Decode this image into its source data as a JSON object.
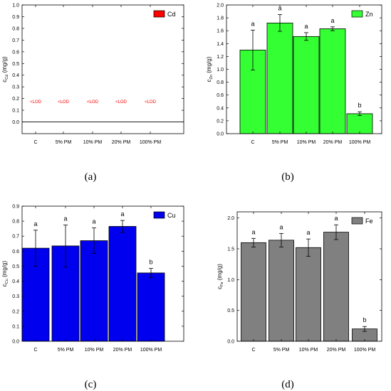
{
  "chart_data": [
    {
      "type": "bar",
      "panel": "(a)",
      "categories": [
        "C",
        "5% PM",
        "10% PM",
        "20% PM",
        "100% PM"
      ],
      "series": [
        {
          "name": "Cd",
          "values": [
            null,
            null,
            null,
            null,
            null
          ]
        }
      ],
      "errors": [
        null,
        null,
        null,
        null,
        null
      ],
      "value_labels": [
        "<LOD",
        "<LOD",
        "<LOD",
        "<LOD",
        "<LOD"
      ],
      "letters": [],
      "ylabel_main": "c",
      "ylabel_sub": "Cd",
      "ylabel_unit": " (mg/g)",
      "ylim": [
        -0.1,
        1.0
      ],
      "yticks": [
        0.0,
        0.1,
        0.2,
        0.3,
        0.4,
        0.5,
        0.6,
        0.7,
        0.8,
        0.9,
        1.0
      ],
      "ytick_labels": [
        "0.0",
        "0.1",
        "0.2",
        "0.3",
        "0.4",
        "0.5",
        "0.6",
        "0.7",
        "0.8",
        "0.9",
        "1.0"
      ],
      "legend": "Cd",
      "legend_position": "top-right",
      "color": "#ff0000",
      "grid": false
    },
    {
      "type": "bar",
      "panel": "(b)",
      "categories": [
        "C",
        "5% PM",
        "10% PM",
        "20% PM",
        "100% PM"
      ],
      "series": [
        {
          "name": "Zn",
          "values": [
            1.3,
            1.72,
            1.51,
            1.63,
            0.31
          ]
        }
      ],
      "errors": [
        0.31,
        0.13,
        0.06,
        0.03,
        0.03
      ],
      "value_labels": [],
      "letters": [
        "a",
        "a",
        "a",
        "a",
        "b"
      ],
      "ylabel_main": "c",
      "ylabel_sub": "Zn",
      "ylabel_unit": " (mg/g)",
      "ylim": [
        0,
        2.0
      ],
      "yticks": [
        0,
        0.2,
        0.4,
        0.6,
        0.8,
        1.0,
        1.2,
        1.4,
        1.6,
        1.8,
        2.0
      ],
      "ytick_labels": [
        "0.0",
        "0.2",
        "0.4",
        "0.6",
        "0.8",
        "1.0",
        "1.2",
        "1.4",
        "1.6",
        "1.8",
        "2.0"
      ],
      "legend": "Zn",
      "legend_position": "top-right",
      "color": "#33ff33",
      "grid": false
    },
    {
      "type": "bar",
      "panel": "(c)",
      "categories": [
        "C",
        "5% PM",
        "10% PM",
        "20% PM",
        "100% PM"
      ],
      "series": [
        {
          "name": "Cu",
          "values": [
            0.62,
            0.635,
            0.67,
            0.765,
            0.455
          ]
        }
      ],
      "errors": [
        0.12,
        0.14,
        0.085,
        0.04,
        0.03
      ],
      "value_labels": [],
      "letters": [
        "a",
        "a",
        "a",
        "a",
        "b"
      ],
      "ylabel_main": "c",
      "ylabel_sub": "Cu",
      "ylabel_unit": " (mg/g)",
      "ylim": [
        0,
        0.9
      ],
      "yticks": [
        0,
        0.1,
        0.2,
        0.3,
        0.4,
        0.5,
        0.6,
        0.7,
        0.8,
        0.9
      ],
      "ytick_labels": [
        "0.0",
        "0.1",
        "0.2",
        "0.3",
        "0.4",
        "0.5",
        "0.6",
        "0.7",
        "0.8",
        "0.9"
      ],
      "legend": "Cu",
      "legend_position": "top-right",
      "color": "#0000ee",
      "grid": false
    },
    {
      "type": "bar",
      "panel": "(d)",
      "categories": [
        "C",
        "5% PM",
        "10% PM",
        "20% PM",
        "100% PM"
      ],
      "series": [
        {
          "name": "Fe",
          "values": [
            1.6,
            1.64,
            1.52,
            1.77,
            0.2
          ]
        }
      ],
      "errors": [
        0.07,
        0.11,
        0.14,
        0.12,
        0.04
      ],
      "value_labels": [],
      "letters": [
        "a",
        "a",
        "a",
        "a",
        "b"
      ],
      "ylabel_main": "c",
      "ylabel_sub": "Fe",
      "ylabel_unit": " (mg/g)",
      "ylim": [
        0,
        2.1
      ],
      "yticks": [
        0.0,
        0.5,
        1.0,
        1.5,
        2.0
      ],
      "ytick_labels": [
        "0.0",
        "0.5",
        "1.0",
        "1.5",
        "2.0"
      ],
      "legend": "Fe",
      "legend_position": "top-right",
      "color": "#808080",
      "grid": false
    }
  ]
}
